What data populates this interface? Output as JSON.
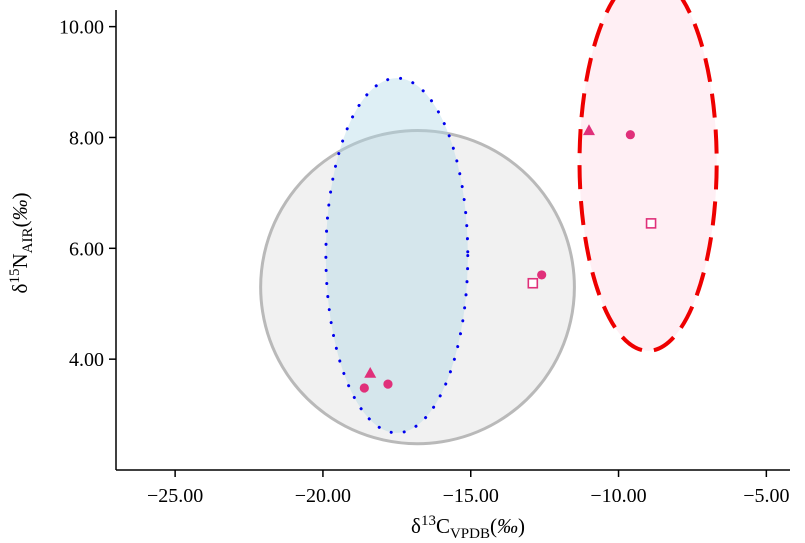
{
  "chart_data": {
    "type": "scatter",
    "title": "",
    "xlabel": {
      "base": "δ",
      "sup": "13",
      "main": "C",
      "sub": "VPDB",
      "unit_open": "(",
      "unit": "‰",
      "unit_close": ")"
    },
    "ylabel": {
      "base": "δ",
      "sup": "15",
      "main": "N",
      "sub": "AIR",
      "unit_open": "(",
      "unit": "‰",
      "unit_close": ")"
    },
    "xlim": [
      -27,
      -4.2
    ],
    "ylim": [
      2.0,
      10.3
    ],
    "xticks": [
      -25,
      -20,
      -15,
      -10,
      -5
    ],
    "xtick_labels": [
      "−25.00",
      "−20.00",
      "−15.00",
      "−10.00",
      "−5.00"
    ],
    "yticks": [
      4,
      6,
      8,
      10
    ],
    "ytick_labels": [
      "4.00",
      "6.00",
      "8.00",
      "10.00"
    ],
    "grid": false,
    "ellipses": [
      {
        "cx": -16.8,
        "cy": 5.3,
        "rx": 5.15,
        "ry": 2.85,
        "angle_deg": 9,
        "fill": "#cfcfcf",
        "fill_opacity": 0.3,
        "stroke": "#b9b9b9",
        "style": "solid"
      },
      {
        "cx": -17.5,
        "cy": 5.87,
        "rx": 2.4,
        "ry": 3.2,
        "angle_deg": 0,
        "fill": "#add8e6",
        "fill_opacity": 0.4,
        "stroke": "#0000ee",
        "style": "dotted"
      },
      {
        "cx": -9.0,
        "cy": 7.55,
        "rx": 3.4,
        "ry": 2.32,
        "angle_deg": 90,
        "fill": "#ffe4ec",
        "fill_opacity": 0.6,
        "stroke": "#ee0000",
        "style": "dashed"
      }
    ],
    "points": [
      {
        "x": -18.4,
        "y": 3.75,
        "marker": "triangle"
      },
      {
        "x": -17.8,
        "y": 3.55,
        "marker": "circle"
      },
      {
        "x": -18.6,
        "y": 3.48,
        "marker": "circle"
      },
      {
        "x": -12.9,
        "y": 5.37,
        "marker": "square"
      },
      {
        "x": -12.6,
        "y": 5.52,
        "marker": "circle"
      },
      {
        "x": -11.0,
        "y": 8.13,
        "marker": "triangle"
      },
      {
        "x": -9.6,
        "y": 8.05,
        "marker": "circle"
      },
      {
        "x": -8.9,
        "y": 6.45,
        "marker": "square"
      }
    ],
    "point_color": "#e0307a"
  }
}
